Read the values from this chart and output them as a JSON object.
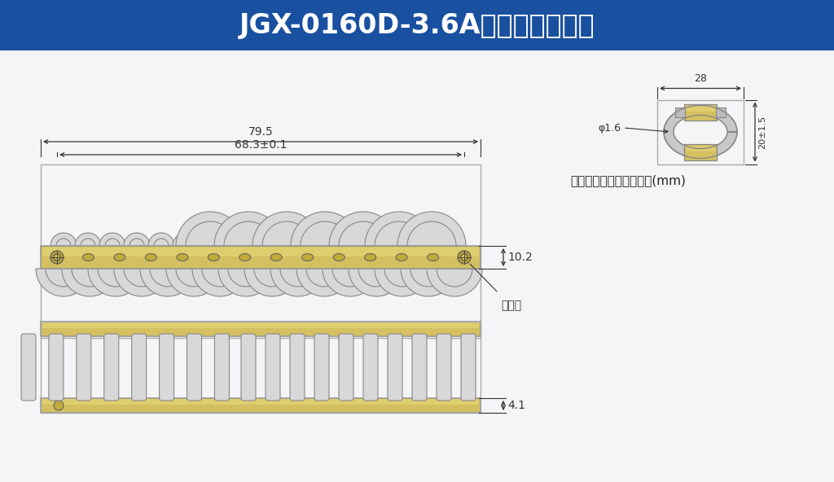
{
  "title": "JGX-0160D-3.6A产品结构示意图",
  "title_bg_color": "#1a50a0",
  "title_text_color": "#ffffff",
  "bg_color": "#e8eaf0",
  "note_text": "注：所有的尺寸均为毫米(mm)",
  "dim_79_5": "79.5",
  "dim_68_3": "68.3±0.1",
  "dim_10_2": "10.2",
  "dim_4_1": "4.1",
  "dim_28": "28",
  "dim_phi_1_6": "φ1.6",
  "dim_20_1_5": "20±1.5",
  "label_anzhuangkong": "安装孔",
  "gold_color": "#d4c060",
  "gold_light": "#e8d878",
  "wire_color": "#d8d8d8",
  "wire_stroke": "#888888",
  "dim_line_color": "#333333",
  "plate_border": "#999999",
  "white_bg": "#f5f5f8"
}
